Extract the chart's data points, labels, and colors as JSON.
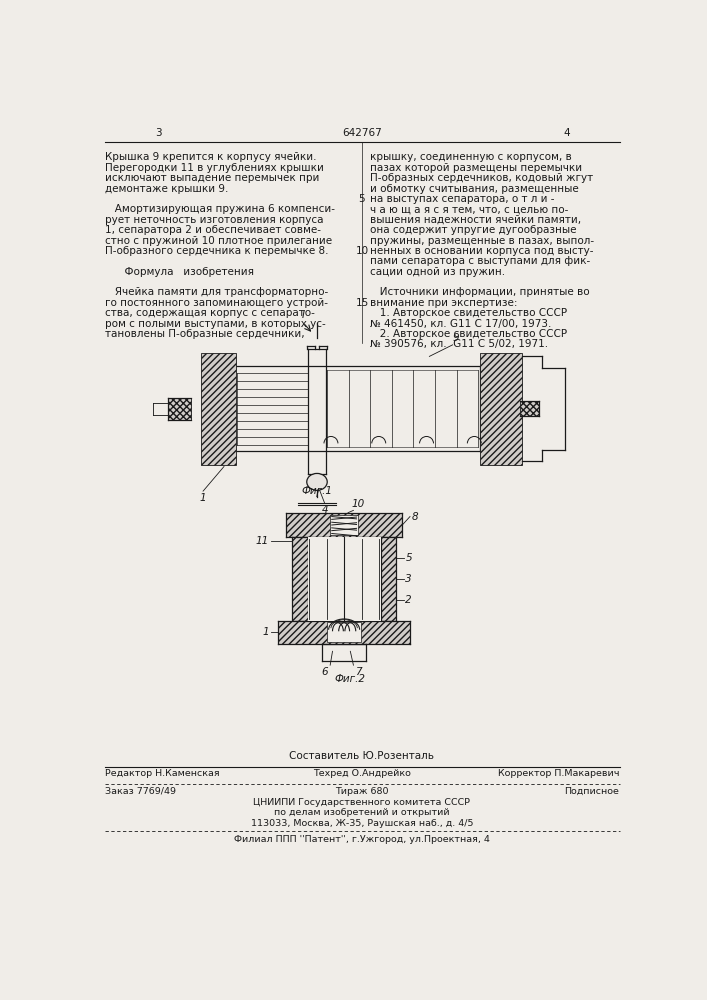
{
  "page_width": 7.07,
  "page_height": 10.0,
  "dpi": 100,
  "bg_color": "#f0ede8",
  "text_color": "#1a1a1a",
  "patent_number": "642767",
  "page_left": "3",
  "page_right": "4",
  "left_col_text": [
    "Крышка 9 крепится к корпусу ячейки.",
    "Перегородки 11 в углублениях крышки",
    "исключают выпадение перемычек при",
    "демонтаже крышки 9.",
    "",
    "   Амортизирующая пружина 6 компенси-",
    "рует неточность изготовления корпуса",
    "1, сепаратора 2 и обеспечивает совме-",
    "стно с пружиной 10 плотное прилегание",
    "П-образного сердечника к перемычке 8.",
    "",
    "      Формула   изобретения",
    "",
    "   Ячейка памяти для трансформаторно-",
    "го постоянного запоминающего устрой-",
    "ства, содержащая корпус с сепарато-",
    "ром с полыми выступами, в которых ус-",
    "тановлены П-образные сердечники,"
  ],
  "right_col_text": [
    "крышку, соединенную с корпусом, в",
    "пазах которой размещены перемычки",
    "П-образных сердечников, кодовый жгут",
    "и обмотку считывания, размещенные",
    "на выступах сепаратора, о т л и -",
    "ч а ю щ а я с я тем, что, с целью по-",
    "вышения надежности ячейки памяти,",
    "она содержит упругие дугообразные",
    "пружины, размещенные в пазах, выпол-",
    "ненных в основании корпуса под высту-",
    "пами сепаратора с выступами для фик-",
    "сации одной из пружин.",
    "",
    "   Источники информации, принятые во",
    "внимание при экспертизе:",
    "   1. Авторское свидетельство СССР",
    "№ 461450, кл. G11 C 17/00, 1973.",
    "   2. Авторское свидетельство СССР",
    "№ 390576, кл.  G11 C 5/02, 1971."
  ],
  "sestavitel": "Составитель Ю.Розенталь",
  "bottom_editor": "Редактор Н.Каменская",
  "bottom_tech": "Техред О.Андрейко",
  "bottom_corrector": "Корректор П.Макаревич",
  "bottom_order": "Заказ 7769/49",
  "bottom_tirazh": "Тираж 680",
  "bottom_podpisnoe": "Подписное",
  "bottom_cniipи": "ЦНИИПИ Государственного комитета СССР",
  "bottom_po_delam": "по делам изобретений и открытий",
  "bottom_address": "113033, Москва, Ж-35, Раушская наб., д. 4/5",
  "bottom_filial": "Филиал ППП ''Патент'', г.Ужгород, ул.Проектная, 4"
}
